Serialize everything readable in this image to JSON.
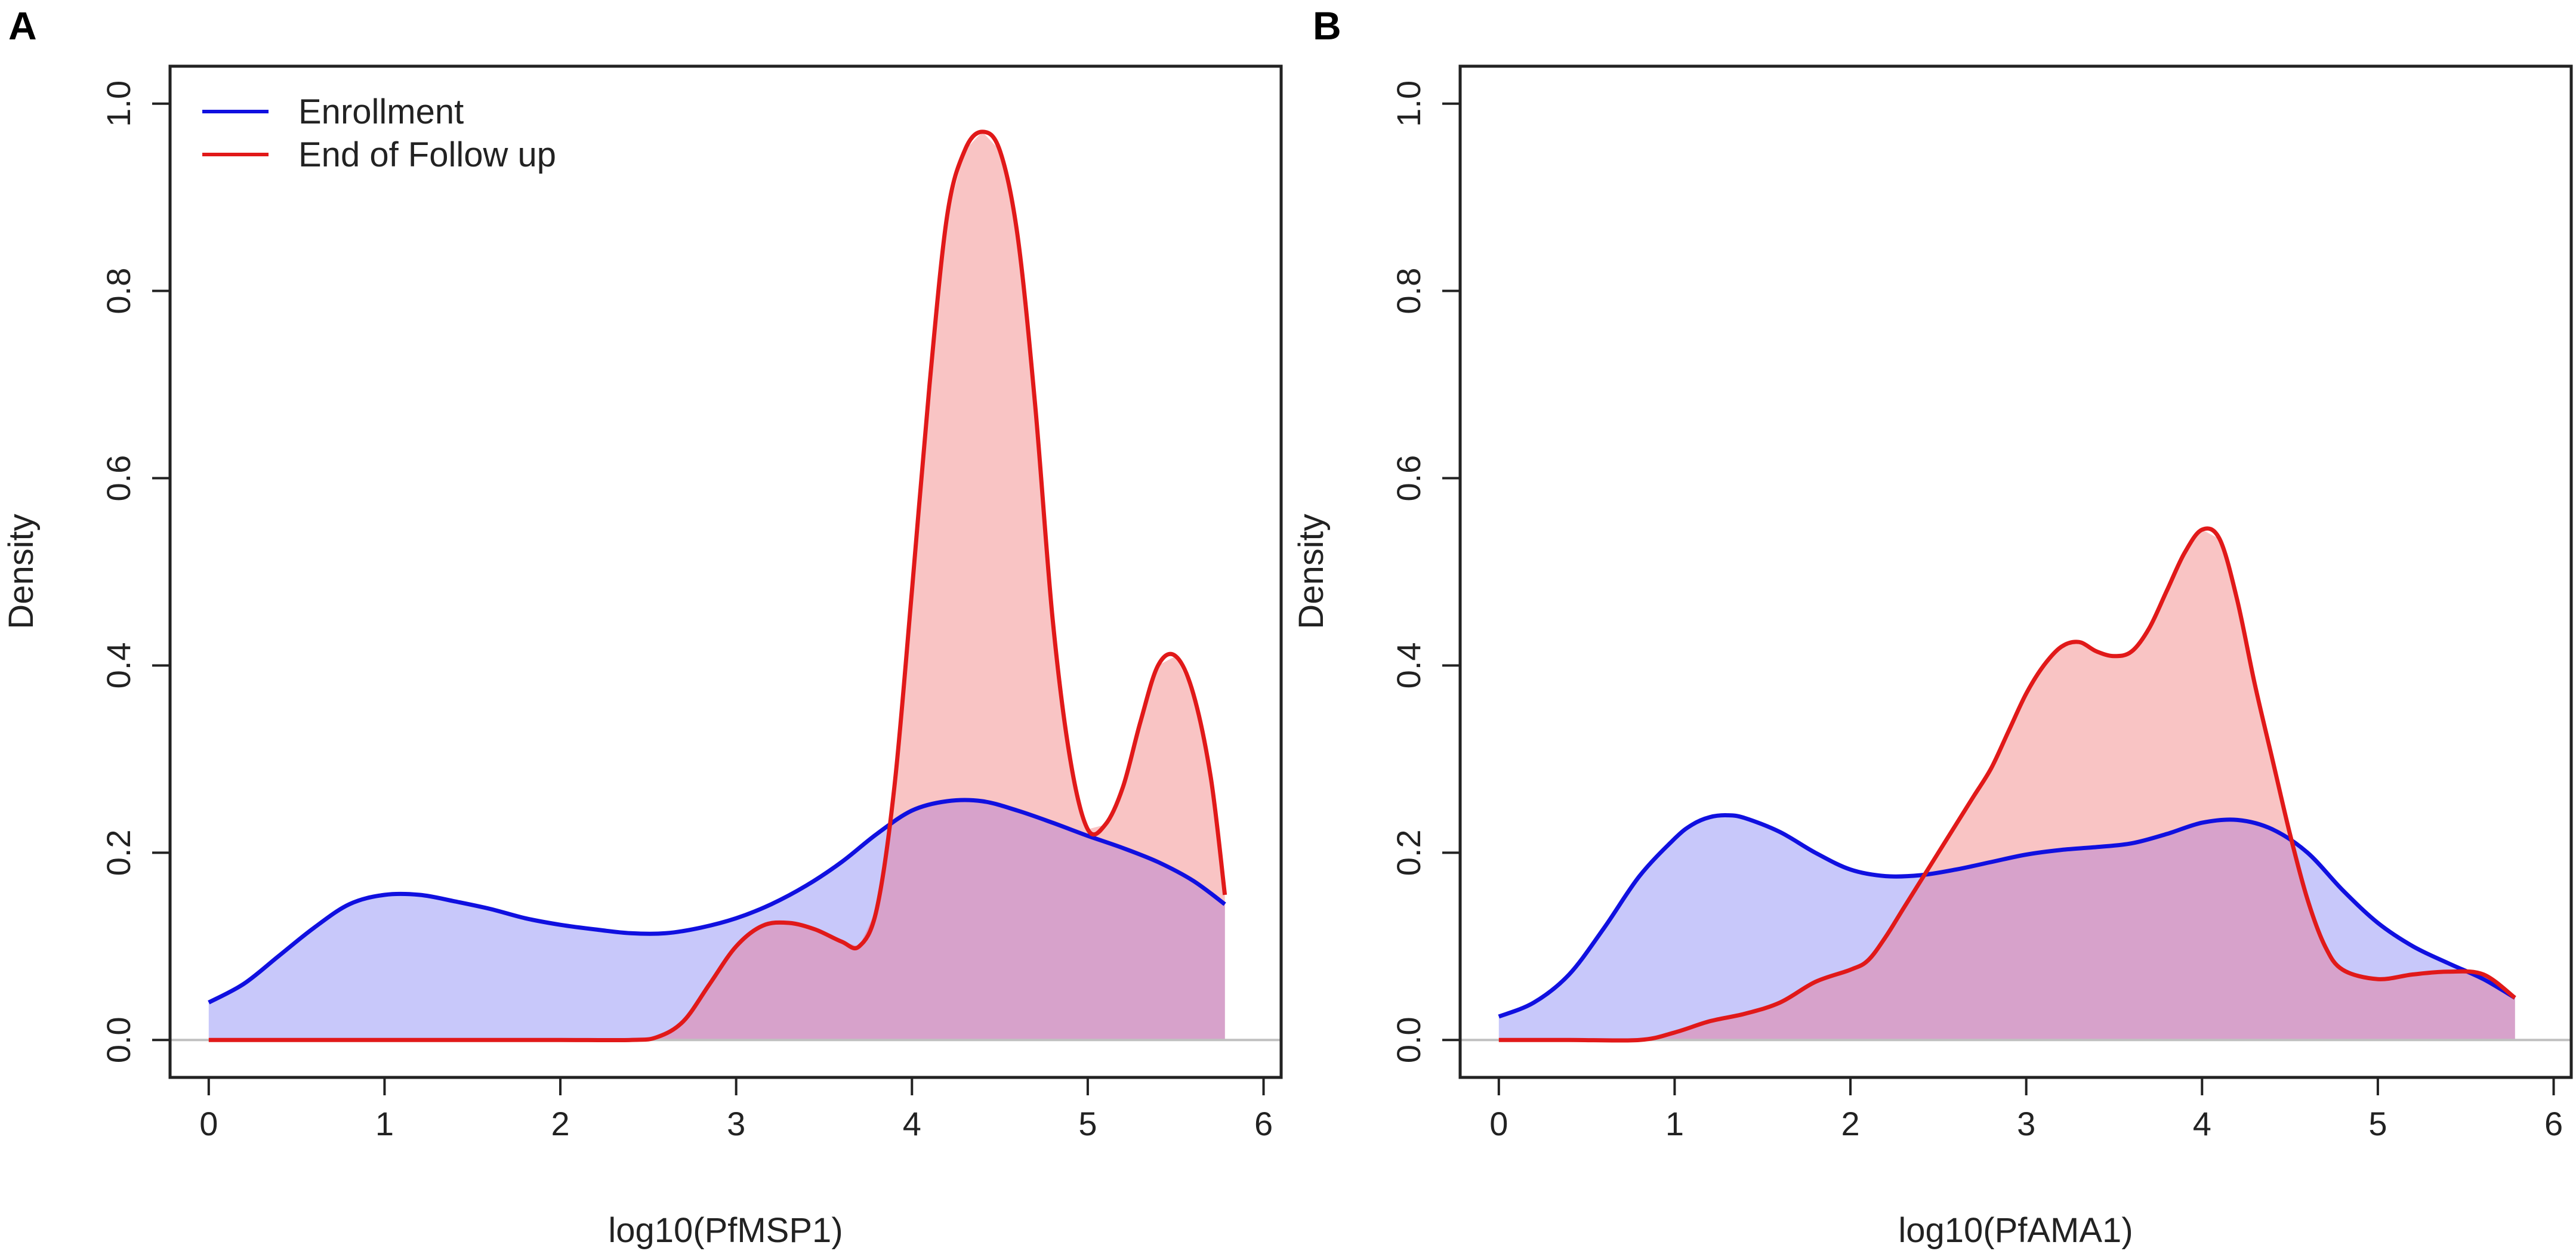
{
  "colors": {
    "enrollment_line": "#1010e0",
    "enrollment_fill": "#c8c8fa",
    "followup_line": "#e11919",
    "followup_fill": "#f9c4c4",
    "overlap_fill": "#d7a2cb",
    "baseline": "#c0c0c0",
    "axis": "#222222"
  },
  "chart_data": [
    {
      "type": "area",
      "panel": "A",
      "title": "",
      "xlabel": "log10(PfMSP1)",
      "ylabel": "Density",
      "xlim": [
        -0.22,
        6.1
      ],
      "ylim": [
        -0.04,
        1.04
      ],
      "xticks": [
        0,
        1,
        2,
        3,
        4,
        5,
        6
      ],
      "yticks": [
        0.0,
        0.2,
        0.4,
        0.6,
        0.8,
        1.0
      ],
      "ytick_labels": [
        "0.0",
        "0.2",
        "0.4",
        "0.6",
        "0.8",
        "1.0"
      ],
      "legend": {
        "position": "top-left",
        "entries": [
          "Enrollment",
          "End of Follow up"
        ]
      },
      "series": [
        {
          "name": "Enrollment",
          "x": [
            0,
            0.2,
            0.4,
            0.6,
            0.8,
            1.0,
            1.2,
            1.4,
            1.6,
            1.8,
            2.0,
            2.2,
            2.4,
            2.6,
            2.8,
            3.0,
            3.2,
            3.4,
            3.6,
            3.8,
            4.0,
            4.2,
            4.4,
            4.6,
            4.8,
            5.0,
            5.2,
            5.4,
            5.6,
            5.78
          ],
          "y": [
            0.04,
            0.06,
            0.09,
            0.12,
            0.145,
            0.155,
            0.155,
            0.148,
            0.14,
            0.13,
            0.123,
            0.118,
            0.114,
            0.114,
            0.12,
            0.13,
            0.145,
            0.165,
            0.19,
            0.22,
            0.245,
            0.255,
            0.255,
            0.245,
            0.232,
            0.218,
            0.205,
            0.19,
            0.17,
            0.145
          ]
        },
        {
          "name": "End of Follow up",
          "x": [
            0,
            0.5,
            1.0,
            1.5,
            2.0,
            2.4,
            2.55,
            2.7,
            2.85,
            3.0,
            3.15,
            3.3,
            3.45,
            3.6,
            3.7,
            3.8,
            3.9,
            4.0,
            4.1,
            4.2,
            4.3,
            4.4,
            4.5,
            4.6,
            4.7,
            4.8,
            4.9,
            5.0,
            5.1,
            5.2,
            5.3,
            5.4,
            5.5,
            5.6,
            5.7,
            5.78
          ],
          "y": [
            0,
            0,
            0,
            0,
            0,
            0,
            0.003,
            0.02,
            0.06,
            0.1,
            0.122,
            0.125,
            0.118,
            0.105,
            0.1,
            0.14,
            0.27,
            0.48,
            0.7,
            0.88,
            0.95,
            0.97,
            0.95,
            0.86,
            0.68,
            0.45,
            0.3,
            0.225,
            0.23,
            0.27,
            0.34,
            0.4,
            0.41,
            0.37,
            0.28,
            0.155
          ]
        }
      ]
    },
    {
      "type": "area",
      "panel": "B",
      "title": "",
      "xlabel": "log10(PfAMA1)",
      "ylabel": "Density",
      "xlim": [
        -0.22,
        6.1
      ],
      "ylim": [
        -0.04,
        1.04
      ],
      "xticks": [
        0,
        1,
        2,
        3,
        4,
        5,
        6
      ],
      "yticks": [
        0.0,
        0.2,
        0.4,
        0.6,
        0.8,
        1.0
      ],
      "ytick_labels": [
        "0.0",
        "0.2",
        "0.4",
        "0.6",
        "0.8",
        "1.0"
      ],
      "legend": null,
      "series": [
        {
          "name": "Enrollment",
          "x": [
            0,
            0.2,
            0.4,
            0.6,
            0.8,
            1.0,
            1.1,
            1.2,
            1.3,
            1.4,
            1.6,
            1.8,
            2.0,
            2.2,
            2.4,
            2.6,
            2.8,
            3.0,
            3.2,
            3.4,
            3.6,
            3.8,
            4.0,
            4.2,
            4.4,
            4.6,
            4.8,
            5.0,
            5.2,
            5.4,
            5.6,
            5.78
          ],
          "y": [
            0.025,
            0.04,
            0.07,
            0.12,
            0.175,
            0.215,
            0.23,
            0.238,
            0.24,
            0.237,
            0.222,
            0.2,
            0.182,
            0.175,
            0.176,
            0.182,
            0.19,
            0.198,
            0.203,
            0.206,
            0.21,
            0.22,
            0.232,
            0.235,
            0.225,
            0.2,
            0.16,
            0.125,
            0.1,
            0.082,
            0.065,
            0.045
          ]
        },
        {
          "name": "End of Follow up",
          "x": [
            0,
            0.4,
            0.8,
            1.0,
            1.2,
            1.4,
            1.6,
            1.8,
            2.0,
            2.1,
            2.2,
            2.3,
            2.4,
            2.5,
            2.6,
            2.7,
            2.8,
            2.9,
            3.0,
            3.1,
            3.2,
            3.3,
            3.4,
            3.5,
            3.6,
            3.7,
            3.8,
            3.9,
            4.0,
            4.1,
            4.2,
            4.3,
            4.4,
            4.5,
            4.6,
            4.7,
            4.8,
            5.0,
            5.2,
            5.4,
            5.6,
            5.78
          ],
          "y": [
            0,
            0,
            0,
            0.008,
            0.02,
            0.028,
            0.04,
            0.062,
            0.075,
            0.085,
            0.11,
            0.14,
            0.17,
            0.2,
            0.23,
            0.26,
            0.29,
            0.33,
            0.37,
            0.4,
            0.42,
            0.425,
            0.415,
            0.41,
            0.415,
            0.44,
            0.48,
            0.52,
            0.545,
            0.535,
            0.47,
            0.38,
            0.3,
            0.22,
            0.15,
            0.1,
            0.075,
            0.065,
            0.07,
            0.073,
            0.07,
            0.045
          ]
        }
      ]
    }
  ]
}
